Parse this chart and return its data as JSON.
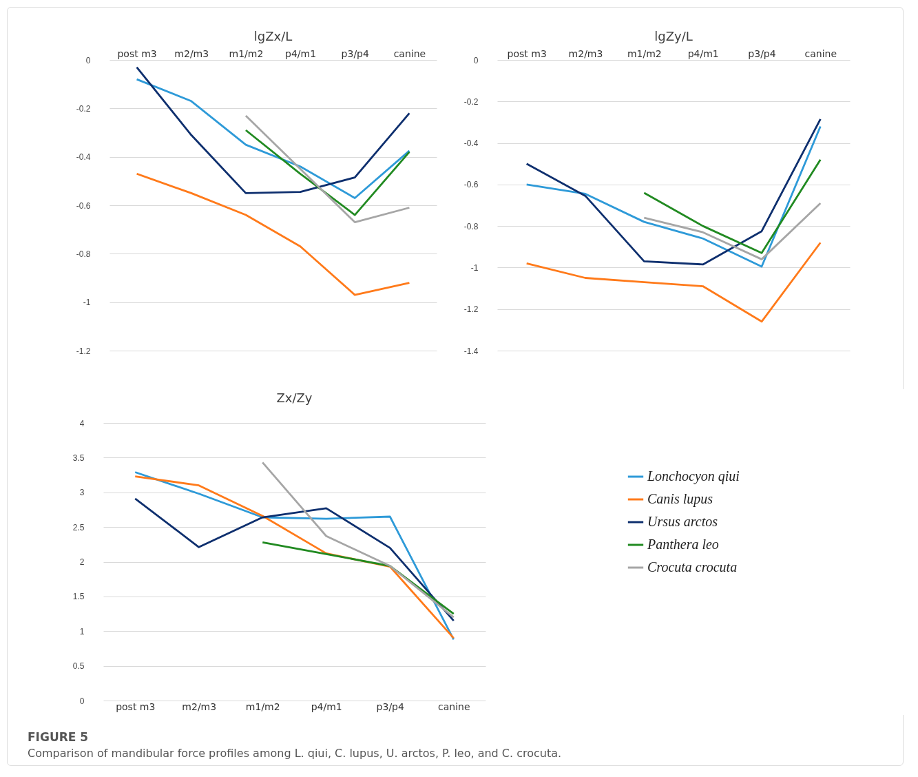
{
  "chart_data": [
    {
      "type": "line",
      "title": "lgZx/L",
      "categories": [
        "post m3",
        "m2/m3",
        "m1/m2",
        "p4/m1",
        "p3/p4",
        "canine"
      ],
      "ylim": [
        -1.2,
        0
      ],
      "yticks": [
        0,
        -0.2,
        -0.4,
        -0.6,
        -0.8,
        -1,
        -1.2
      ],
      "grid": "y",
      "legend": false,
      "line_style": "solid",
      "series": [
        {
          "color": "#2e9ad8",
          "values": [
            -0.08,
            -0.17,
            -0.35,
            -0.44,
            -0.57,
            -0.375
          ]
        },
        {
          "color": "#ff7a1a",
          "values": [
            -0.47,
            -0.55,
            -0.64,
            -0.77,
            -0.97,
            -0.92
          ]
        },
        {
          "color": "#0e2f6e",
          "values": [
            -0.03,
            -0.31,
            -0.55,
            -0.545,
            -0.485,
            -0.22
          ]
        },
        {
          "color": "#218a21",
          "values": [
            null,
            null,
            -0.29,
            -0.47,
            -0.64,
            -0.38
          ]
        },
        {
          "color": "#a6a6a6",
          "values": [
            null,
            null,
            -0.23,
            -0.45,
            -0.67,
            -0.61
          ]
        }
      ]
    },
    {
      "type": "line",
      "title": "lgZy/L",
      "categories": [
        "post m3",
        "m2/m3",
        "m1/m2",
        "p4/m1",
        "p3/p4",
        "canine"
      ],
      "ylim": [
        -1.4,
        0
      ],
      "yticks": [
        0,
        -0.2,
        -0.4,
        -0.6,
        -0.8,
        -1,
        -1.2,
        -1.4
      ],
      "grid": "y",
      "legend": false,
      "line_style": "solid",
      "series": [
        {
          "color": "#2e9ad8",
          "values": [
            -0.6,
            -0.645,
            -0.78,
            -0.86,
            -0.995,
            -0.32
          ]
        },
        {
          "color": "#ff7a1a",
          "values": [
            -0.98,
            -1.05,
            -1.07,
            -1.09,
            -1.26,
            -0.88
          ]
        },
        {
          "color": "#0e2f6e",
          "values": [
            -0.5,
            -0.655,
            -0.97,
            -0.985,
            -0.825,
            -0.285
          ]
        },
        {
          "color": "#218a21",
          "values": [
            null,
            null,
            -0.64,
            -0.8,
            -0.93,
            -0.48
          ]
        },
        {
          "color": "#a6a6a6",
          "values": [
            null,
            null,
            -0.76,
            -0.83,
            -0.96,
            -0.69
          ]
        }
      ]
    },
    {
      "type": "line",
      "title": "Zx/Zy",
      "categories": [
        "post m3",
        "m2/m3",
        "m1/m2",
        "p4/m1",
        "p3/p4",
        "canine"
      ],
      "ylim": [
        0,
        4
      ],
      "yticks": [
        0,
        0.5,
        1,
        1.5,
        2,
        2.5,
        3,
        3.5,
        4
      ],
      "grid": "y",
      "legend": "right",
      "line_style": "solid",
      "series": [
        {
          "name": "Lonchocyon qiui",
          "color": "#2e9ad8",
          "values": [
            3.29,
            2.98,
            2.64,
            2.62,
            2.65,
            0.88
          ]
        },
        {
          "name": "Canis lupus",
          "color": "#ff7a1a",
          "values": [
            3.23,
            3.1,
            2.66,
            2.12,
            1.93,
            0.9
          ]
        },
        {
          "name": "Ursus arctos",
          "color": "#0e2f6e",
          "values": [
            2.91,
            2.21,
            2.64,
            2.77,
            2.2,
            1.15
          ]
        },
        {
          "name": "Panthera leo",
          "color": "#218a21",
          "values": [
            null,
            null,
            2.28,
            2.11,
            1.94,
            1.25
          ]
        },
        {
          "name": "Crocuta crocuta",
          "color": "#a6a6a6",
          "values": [
            null,
            null,
            3.43,
            2.37,
            1.94,
            1.2
          ]
        }
      ],
      "annotations": [
        "FIGURE 5",
        "Comparison of mandibular force profiles among L. qiui, C. lupus, U. arctos, P. leo, and C. crocuta."
      ]
    }
  ]
}
